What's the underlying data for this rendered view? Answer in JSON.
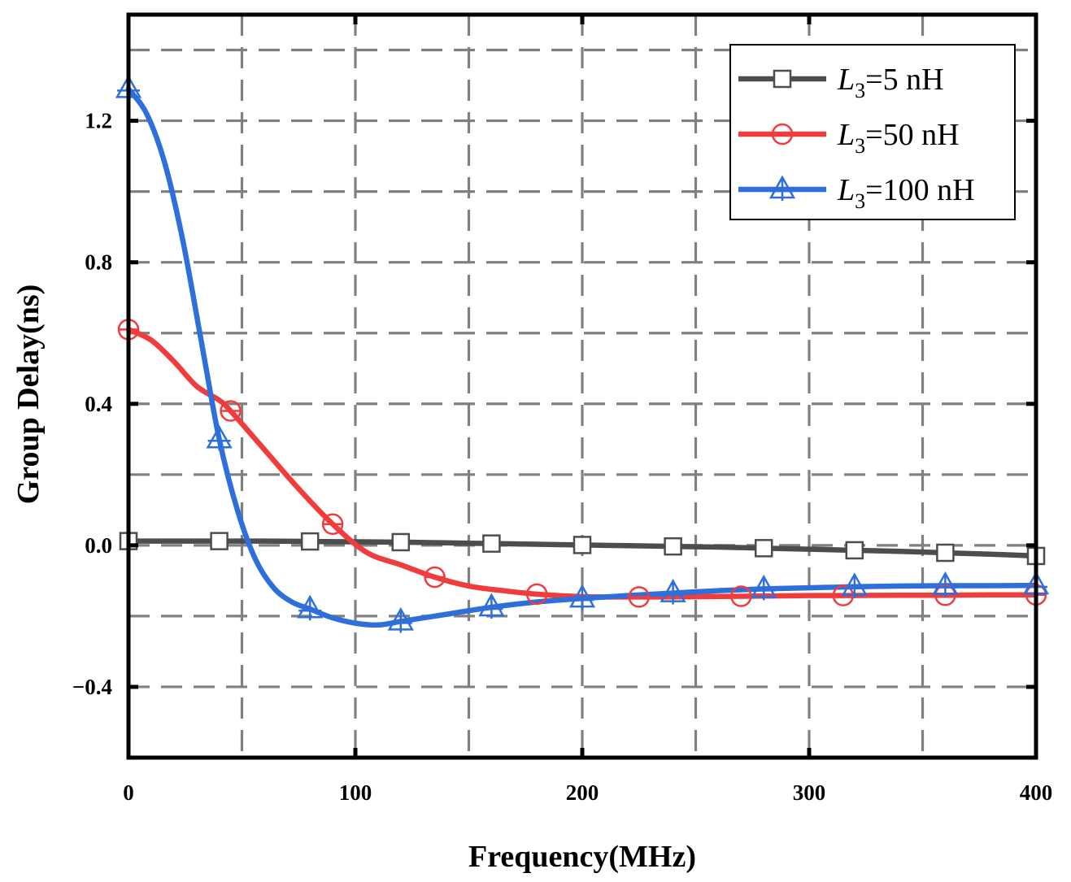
{
  "chart_data": {
    "type": "line",
    "title": "",
    "xlabel": "Frequency(MHz)",
    "ylabel": "Group Delay(ns)",
    "xlim": [
      0,
      400
    ],
    "ylim": [
      -0.6,
      1.5
    ],
    "xticks": [
      0,
      100,
      200,
      300,
      400
    ],
    "xtick_labels": [
      "0",
      "100",
      "200",
      "300",
      "400"
    ],
    "yticks": [
      -0.4,
      0.0,
      0.4,
      0.8,
      1.2
    ],
    "ytick_labels": [
      "−0.4",
      "0.0",
      "0.4",
      "0.8",
      "1.2"
    ],
    "grid": true,
    "legend_position": "top-right",
    "series": [
      {
        "name": "L3=5 nH",
        "legend_symbol": "L",
        "legend_subscript": "3",
        "legend_rest": "=5 nH",
        "color": "#4d4d4d",
        "marker": "square",
        "x": [
          0,
          10,
          20,
          30,
          40,
          60,
          80,
          100,
          120,
          140,
          160,
          180,
          200,
          220,
          240,
          260,
          280,
          300,
          320,
          340,
          360,
          380,
          400
        ],
        "y": [
          0.012,
          0.012,
          0.012,
          0.012,
          0.012,
          0.012,
          0.011,
          0.01,
          0.009,
          0.007,
          0.005,
          0.003,
          0.001,
          -0.001,
          -0.003,
          -0.005,
          -0.008,
          -0.011,
          -0.014,
          -0.017,
          -0.021,
          -0.025,
          -0.03
        ],
        "marker_x": [
          0,
          40,
          80,
          120,
          160,
          200,
          240,
          280,
          320,
          360,
          400
        ]
      },
      {
        "name": "L3=50 nH",
        "legend_symbol": "L",
        "legend_subscript": "3",
        "legend_rest": "=50 nH",
        "color": "#f03c3c",
        "marker": "circle",
        "x": [
          0,
          10,
          20,
          30,
          40,
          45,
          60,
          75,
          90,
          105,
          120,
          135,
          150,
          165,
          180,
          200,
          225,
          250,
          270,
          300,
          315,
          340,
          360,
          380,
          400
        ],
        "y": [
          0.61,
          0.58,
          0.52,
          0.45,
          0.41,
          0.38,
          0.27,
          0.16,
          0.06,
          -0.02,
          -0.055,
          -0.09,
          -0.115,
          -0.128,
          -0.138,
          -0.145,
          -0.146,
          -0.145,
          -0.144,
          -0.142,
          -0.142,
          -0.141,
          -0.141,
          -0.14,
          -0.14
        ],
        "marker_x": [
          0,
          45,
          90,
          135,
          180,
          225,
          270,
          315,
          360,
          400
        ]
      },
      {
        "name": "L3=100 nH",
        "legend_symbol": "L",
        "legend_subscript": "3",
        "legend_rest": "=100 nH",
        "color": "#2f6fdb",
        "marker": "triangle",
        "x": [
          0,
          8,
          16,
          24,
          32,
          40,
          48,
          56,
          64,
          72,
          80,
          90,
          100,
          110,
          120,
          130,
          140,
          160,
          180,
          200,
          220,
          240,
          260,
          280,
          300,
          320,
          340,
          360,
          380,
          400
        ],
        "y": [
          1.29,
          1.22,
          1.08,
          0.86,
          0.58,
          0.3,
          0.1,
          -0.04,
          -0.12,
          -0.16,
          -0.18,
          -0.205,
          -0.22,
          -0.225,
          -0.215,
          -0.205,
          -0.195,
          -0.175,
          -0.16,
          -0.15,
          -0.142,
          -0.135,
          -0.128,
          -0.123,
          -0.12,
          -0.117,
          -0.115,
          -0.114,
          -0.114,
          -0.113
        ],
        "marker_x": [
          0,
          40,
          80,
          120,
          160,
          200,
          240,
          280,
          320,
          360,
          400
        ]
      }
    ]
  }
}
